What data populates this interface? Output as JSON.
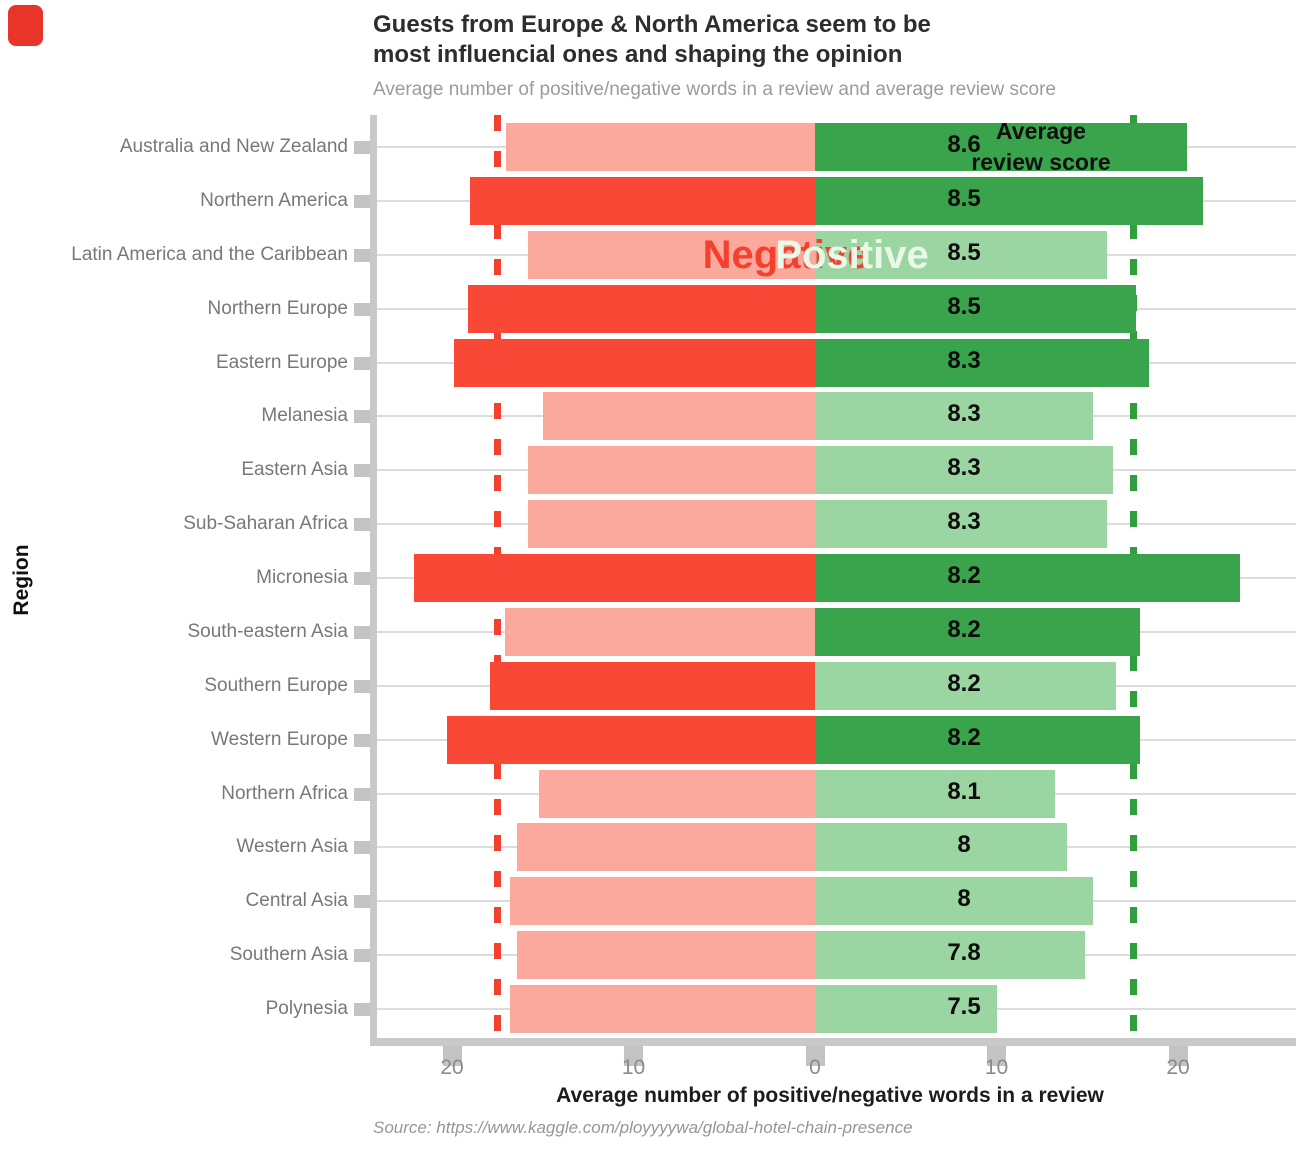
{
  "title": {
    "line1": "Guests from Europe & North America seem to be",
    "line2": "most influencial ones and shaping the opinion"
  },
  "subtitle": "Average number of positive/negative words in a review and average review score",
  "annotations": {
    "legend_line1": "Average",
    "legend_line2": "review score",
    "negative_label": "Negative",
    "positive_label": "Positive"
  },
  "axes": {
    "x_title": "Average number of positive/negative words in a review",
    "y_title": "Region",
    "x_tick_labels": [
      "20",
      "10",
      "0",
      "10",
      "20"
    ]
  },
  "source": "Source: https://www.kaggle.com/ployyyywa/global-hotel-chain-presence",
  "colors": {
    "negative_light": "#fba99c",
    "negative_saturated": "#fa4836",
    "positive_light": "#9bd5a2",
    "positive_saturated": "#39a44b",
    "negative_dash_line": "#f4402e",
    "positive_dash_line": "#2f9e3d",
    "gridline": "#dcdcdc",
    "axis_line": "#c9c9c9"
  },
  "chart_data": {
    "type": "bar",
    "variant": "diverging-horizontal",
    "title": "Guests from Europe & North America seem to be most influencial ones and shaping the opinion",
    "subtitle": "Average number of positive/negative words in a review and average review score",
    "xlabel": "Average number of positive/negative words in a review",
    "ylabel": "Region",
    "x_ticks": [
      -20,
      -10,
      0,
      10,
      20
    ],
    "x_range": [
      -24.4,
      26.5
    ],
    "grid": true,
    "threshold": 17.5,
    "threshold_lines": {
      "negative": -17.5,
      "positive": 17.5
    },
    "highlight_rule": "bars longer than 17.5 words are drawn in saturated color",
    "regions": [
      {
        "name": "Australia and New Zealand",
        "negative_words": 17.0,
        "positive_words": 20.5,
        "avg_review_score": "8.6"
      },
      {
        "name": "Northern America",
        "negative_words": 19.0,
        "positive_words": 21.4,
        "avg_review_score": "8.5"
      },
      {
        "name": "Latin America and the Caribbean",
        "negative_words": 15.8,
        "positive_words": 16.1,
        "avg_review_score": "8.5"
      },
      {
        "name": "Northern Europe",
        "negative_words": 19.1,
        "positive_words": 17.7,
        "avg_review_score": "8.5"
      },
      {
        "name": "Eastern Europe",
        "negative_words": 19.9,
        "positive_words": 18.4,
        "avg_review_score": "8.3"
      },
      {
        "name": "Melanesia",
        "negative_words": 15.0,
        "positive_words": 15.3,
        "avg_review_score": "8.3"
      },
      {
        "name": "Eastern Asia",
        "negative_words": 15.8,
        "positive_words": 16.4,
        "avg_review_score": "8.3"
      },
      {
        "name": "Sub-Saharan Africa",
        "negative_words": 15.8,
        "positive_words": 16.1,
        "avg_review_score": "8.3"
      },
      {
        "name": "Micronesia",
        "negative_words": 22.1,
        "positive_words": 23.4,
        "avg_review_score": "8.2"
      },
      {
        "name": "South-eastern Asia",
        "negative_words": 17.1,
        "positive_words": 17.9,
        "avg_review_score": "8.2"
      },
      {
        "name": "Southern Europe",
        "negative_words": 17.9,
        "positive_words": 16.6,
        "avg_review_score": "8.2"
      },
      {
        "name": "Western Europe",
        "negative_words": 20.3,
        "positive_words": 17.9,
        "avg_review_score": "8.2"
      },
      {
        "name": "Northern Africa",
        "negative_words": 15.2,
        "positive_words": 13.2,
        "avg_review_score": "8.1"
      },
      {
        "name": "Western Asia",
        "negative_words": 16.4,
        "positive_words": 13.9,
        "avg_review_score": "8"
      },
      {
        "name": "Central Asia",
        "negative_words": 16.8,
        "positive_words": 15.3,
        "avg_review_score": "8"
      },
      {
        "name": "Southern Asia",
        "negative_words": 16.4,
        "positive_words": 14.9,
        "avg_review_score": "7.8"
      },
      {
        "name": "Polynesia",
        "negative_words": 16.8,
        "positive_words": 10.0,
        "avg_review_score": "7.5"
      }
    ]
  }
}
